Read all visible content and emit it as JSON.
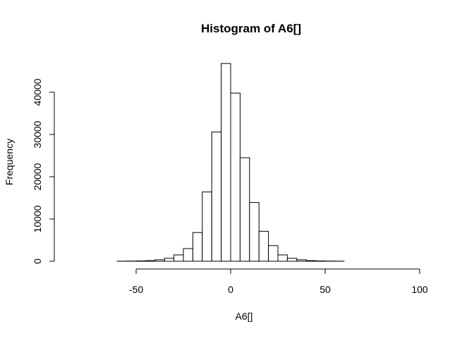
{
  "chart_data": {
    "type": "bar",
    "title": "Histogram of A6[]",
    "xlabel": "A6[]",
    "ylabel": "Frequency",
    "xlim": [
      -90,
      105
    ],
    "ylim": [
      0,
      48000
    ],
    "x_ticks": [
      -50,
      0,
      50,
      100
    ],
    "y_ticks": [
      0,
      10000,
      20000,
      30000,
      40000
    ],
    "x_tick_labels": [
      "-50",
      "0",
      "50",
      "100"
    ],
    "y_tick_labels": [
      "0",
      "10000",
      "20000",
      "30000",
      "40000"
    ],
    "bins": [
      {
        "start": -85,
        "end": -80,
        "count": 0
      },
      {
        "start": -80,
        "end": -75,
        "count": 0
      },
      {
        "start": -75,
        "end": -70,
        "count": 0
      },
      {
        "start": -70,
        "end": -65,
        "count": 0
      },
      {
        "start": -65,
        "end": -60,
        "count": 0
      },
      {
        "start": -60,
        "end": -55,
        "count": 20
      },
      {
        "start": -55,
        "end": -50,
        "count": 40
      },
      {
        "start": -50,
        "end": -45,
        "count": 80
      },
      {
        "start": -45,
        "end": -40,
        "count": 150
      },
      {
        "start": -40,
        "end": -35,
        "count": 350
      },
      {
        "start": -35,
        "end": -30,
        "count": 700
      },
      {
        "start": -30,
        "end": -25,
        "count": 1500
      },
      {
        "start": -25,
        "end": -20,
        "count": 3000
      },
      {
        "start": -20,
        "end": -15,
        "count": 6800
      },
      {
        "start": -15,
        "end": -10,
        "count": 16400
      },
      {
        "start": -10,
        "end": -5,
        "count": 30600
      },
      {
        "start": -5,
        "end": 0,
        "count": 46800
      },
      {
        "start": 0,
        "end": 5,
        "count": 39800
      },
      {
        "start": 5,
        "end": 10,
        "count": 24500
      },
      {
        "start": 10,
        "end": 15,
        "count": 13900
      },
      {
        "start": 15,
        "end": 20,
        "count": 7100
      },
      {
        "start": 20,
        "end": 25,
        "count": 3700
      },
      {
        "start": 25,
        "end": 30,
        "count": 1500
      },
      {
        "start": 30,
        "end": 35,
        "count": 700
      },
      {
        "start": 35,
        "end": 40,
        "count": 350
      },
      {
        "start": 40,
        "end": 45,
        "count": 150
      },
      {
        "start": 45,
        "end": 50,
        "count": 80
      },
      {
        "start": 50,
        "end": 55,
        "count": 40
      },
      {
        "start": 55,
        "end": 60,
        "count": 20
      },
      {
        "start": 60,
        "end": 65,
        "count": 0
      },
      {
        "start": 65,
        "end": 70,
        "count": 0
      },
      {
        "start": 70,
        "end": 75,
        "count": 0
      },
      {
        "start": 75,
        "end": 80,
        "count": 0
      },
      {
        "start": 80,
        "end": 85,
        "count": 0
      },
      {
        "start": 85,
        "end": 90,
        "count": 0
      },
      {
        "start": 90,
        "end": 95,
        "count": 0
      },
      {
        "start": 95,
        "end": 100,
        "count": 0
      },
      {
        "start": 100,
        "end": 105,
        "count": 0
      }
    ]
  }
}
